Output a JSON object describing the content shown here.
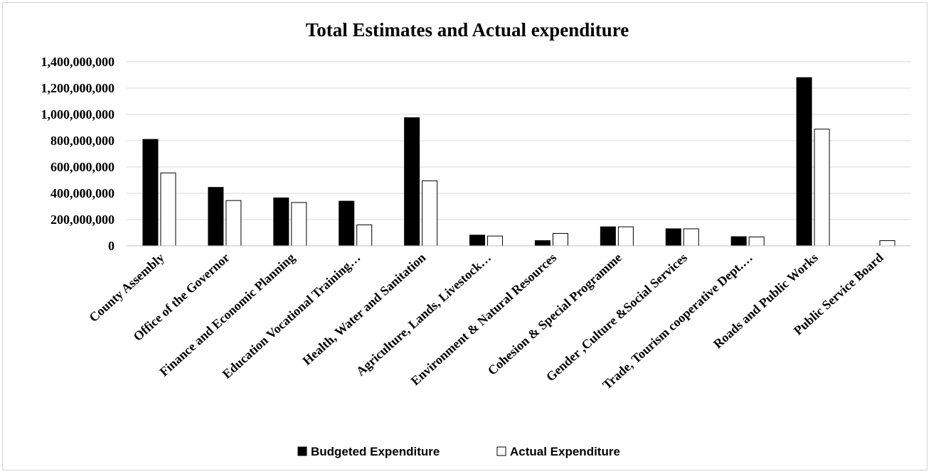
{
  "chart_data": {
    "type": "bar",
    "title": "Total Estimates and Actual expenditure",
    "xlabel": "",
    "ylabel": "",
    "ylim": [
      0,
      1400000000
    ],
    "yticks": [
      0,
      200000000,
      400000000,
      600000000,
      800000000,
      1000000000,
      1200000000,
      1400000000
    ],
    "ytick_labels": [
      "0",
      "200,000,000",
      "400,000,000",
      "600,000,000",
      "800,000,000",
      "1,000,000,000",
      "1,200,000,000",
      "1,400,000,000"
    ],
    "grid": true,
    "legend_position": "bottom",
    "categories": [
      "County Assembly",
      "Office of the Governor",
      "Finance and Economic Planning",
      "Education Vocational Training…",
      "Health, Water and Sanitation",
      "Agriculture, Lands, Livestock…",
      "Environment & Natural Resources",
      "Cohesion & Special Programme",
      "Gender ,Culture &Social Services",
      "Trade, Tourism cooperative Dept.…",
      "Roads and Public Works",
      "Public Service Board"
    ],
    "series": [
      {
        "name": "Budgeted Expenditure",
        "color": "#000000",
        "values": [
          810000000,
          445000000,
          365000000,
          340000000,
          975000000,
          82000000,
          40000000,
          145000000,
          130000000,
          70000000,
          1280000000,
          0
        ]
      },
      {
        "name": "Actual Expenditure",
        "color": "#ffffff",
        "values": [
          555000000,
          345000000,
          330000000,
          160000000,
          495000000,
          75000000,
          95000000,
          145000000,
          130000000,
          68000000,
          888000000,
          40000000
        ]
      }
    ]
  }
}
